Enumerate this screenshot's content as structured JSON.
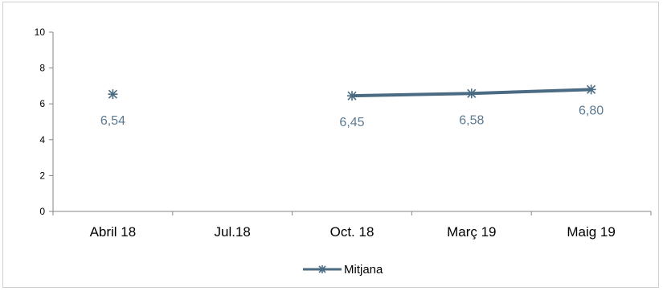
{
  "chart_data": {
    "type": "line",
    "title": "",
    "xlabel": "",
    "ylabel": "",
    "categories": [
      "Abril 18",
      "Jul.18",
      "Oct. 18",
      "Març 19",
      "Maig 19"
    ],
    "ylim": [
      0,
      10
    ],
    "yticks": [
      0,
      2,
      4,
      6,
      8,
      10
    ],
    "grid": false,
    "legend_position": "bottom",
    "series": [
      {
        "name": "Mitjana",
        "values": [
          6.54,
          null,
          6.45,
          6.58,
          6.8
        ],
        "data_labels": [
          "6,54",
          "",
          "6,45",
          "6,58",
          "6,80"
        ],
        "color": "#4a6b82",
        "marker": "asterisk"
      }
    ]
  },
  "colors": {
    "series_line": "#4a6b82",
    "data_label_text": "#5b7a92",
    "axis": "#868686",
    "frame": "#d0d0d0"
  }
}
